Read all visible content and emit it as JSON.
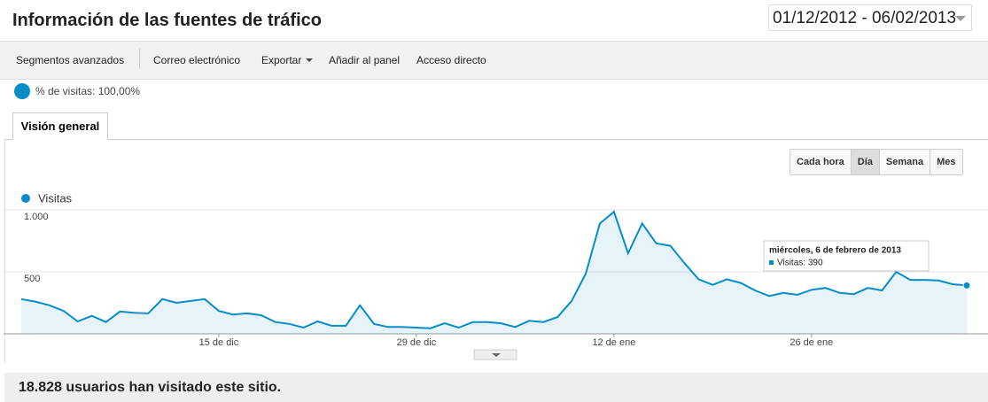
{
  "header": {
    "title": "Información de las fuentes de tráfico",
    "date_range": "01/12/2012 - 06/02/2013"
  },
  "toolbar": [
    "Segmentos avanzados",
    "Correo electrónico",
    "Exportar",
    "Añadir al panel",
    "Acceso directo"
  ],
  "segment": "% de visitas: 100,00%",
  "tabs": [
    "Visión general"
  ],
  "granularity": [
    "Cada hora",
    "Día",
    "Semana",
    "Mes"
  ],
  "chart_data": {
    "type": "line",
    "categories": [
      null,
      null,
      null,
      null,
      null,
      null,
      null,
      null,
      null,
      null,
      null,
      null,
      null,
      null,
      "15 de dic",
      null,
      null,
      null,
      null,
      null,
      null,
      null,
      null,
      null,
      null,
      null,
      null,
      null,
      "29 de dic",
      null,
      null,
      null,
      null,
      null,
      null,
      null,
      null,
      null,
      null,
      null,
      null,
      null,
      "12 de ene",
      null,
      null,
      null,
      null,
      null,
      null,
      null,
      null,
      null,
      null,
      null,
      null,
      null,
      "26 de ene",
      null,
      null,
      null,
      null,
      null,
      null,
      null,
      null,
      null,
      null,
      null
    ],
    "series": [
      {
        "name": "Visitas",
        "color": "#058dc7",
        "values": [
          280,
          260,
          230,
          185,
          100,
          145,
          95,
          180,
          170,
          165,
          280,
          250,
          265,
          280,
          185,
          155,
          165,
          150,
          95,
          80,
          50,
          100,
          65,
          65,
          230,
          80,
          55,
          55,
          50,
          45,
          85,
          50,
          95,
          95,
          85,
          55,
          105,
          95,
          135,
          265,
          485,
          890,
          985,
          650,
          890,
          730,
          710,
          570,
          440,
          395,
          440,
          410,
          350,
          305,
          330,
          315,
          355,
          370,
          330,
          320,
          370,
          350,
          500,
          435,
          435,
          430,
          400,
          390
        ]
      }
    ],
    "ylim": [
      0,
      1000
    ],
    "yticks": [
      {
        "value": 500,
        "label": "500"
      },
      {
        "value": 1000,
        "label": "1.000"
      }
    ],
    "grid": true,
    "tooltip": {
      "title": "miércoles, 6 de febrero de 2013",
      "text": "Visitas: 390"
    }
  },
  "summary": "18.828 usuarios han visitado este sitio."
}
